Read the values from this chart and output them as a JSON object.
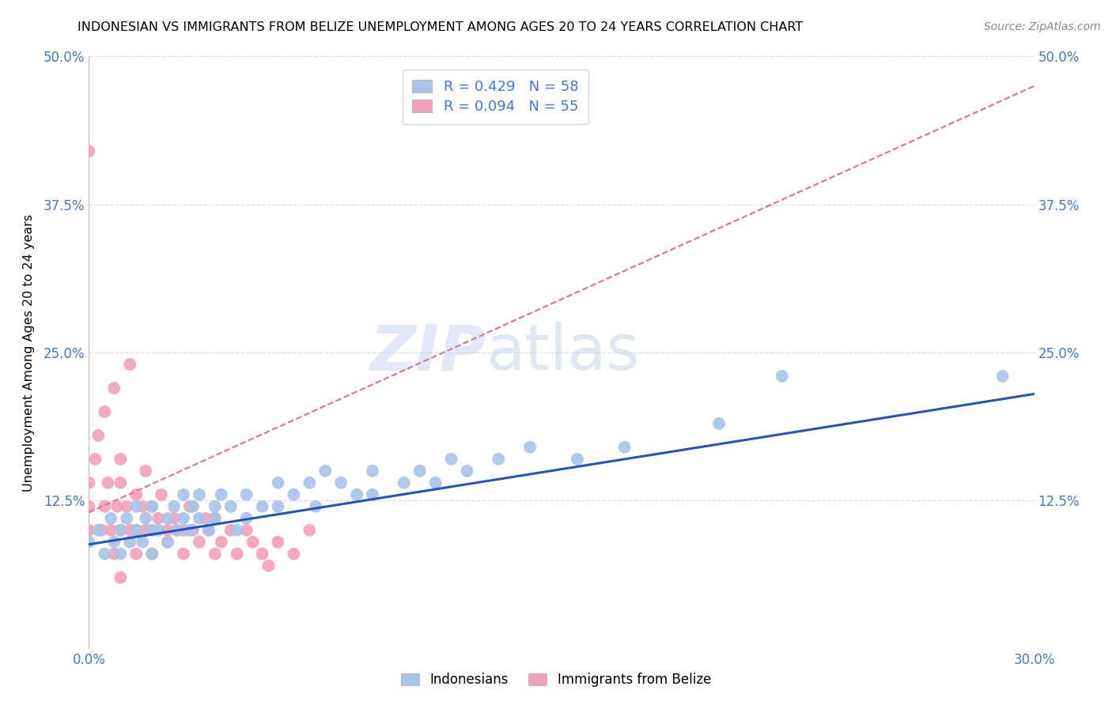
{
  "title": "INDONESIAN VS IMMIGRANTS FROM BELIZE UNEMPLOYMENT AMONG AGES 20 TO 24 YEARS CORRELATION CHART",
  "source": "Source: ZipAtlas.com",
  "ylabel": "Unemployment Among Ages 20 to 24 years",
  "xlim": [
    0,
    0.3
  ],
  "ylim": [
    0,
    0.5
  ],
  "yticks": [
    0.0,
    0.125,
    0.25,
    0.375,
    0.5
  ],
  "ytick_labels_left": [
    "",
    "12.5%",
    "25.0%",
    "37.5%",
    "50.0%"
  ],
  "ytick_labels_right": [
    "",
    "12.5%",
    "25.0%",
    "37.5%",
    "50.0%"
  ],
  "xtick_labels": [
    "0.0%",
    "",
    "",
    "",
    "",
    "",
    "30.0%"
  ],
  "blue_color": "#a8c4e8",
  "pink_color": "#f4a0b8",
  "blue_line_color": "#2255bb",
  "pink_line_color": "#e07090",
  "grid_color": "#dddddd",
  "R_blue": 0.429,
  "N_blue": 58,
  "R_pink": 0.094,
  "N_pink": 55,
  "watermark": "ZIPatlas",
  "legend_label_blue": "Indonesians",
  "legend_label_pink": "Immigrants from Belize",
  "tick_color": "#4477cc",
  "title_fontsize": 11.5,
  "source_fontsize": 10,
  "blue_x": [
    0.0,
    0.003,
    0.005,
    0.007,
    0.008,
    0.01,
    0.01,
    0.012,
    0.013,
    0.015,
    0.015,
    0.017,
    0.018,
    0.02,
    0.02,
    0.02,
    0.022,
    0.025,
    0.025,
    0.027,
    0.028,
    0.03,
    0.03,
    0.032,
    0.033,
    0.035,
    0.035,
    0.038,
    0.04,
    0.04,
    0.042,
    0.045,
    0.047,
    0.05,
    0.05,
    0.055,
    0.06,
    0.06,
    0.065,
    0.07,
    0.072,
    0.075,
    0.08,
    0.085,
    0.09,
    0.09,
    0.1,
    0.105,
    0.11,
    0.115,
    0.12,
    0.13,
    0.14,
    0.155,
    0.17,
    0.2,
    0.22,
    0.29
  ],
  "blue_y": [
    0.09,
    0.1,
    0.08,
    0.11,
    0.09,
    0.1,
    0.08,
    0.11,
    0.09,
    0.1,
    0.12,
    0.09,
    0.11,
    0.1,
    0.08,
    0.12,
    0.1,
    0.11,
    0.09,
    0.12,
    0.1,
    0.11,
    0.13,
    0.1,
    0.12,
    0.11,
    0.13,
    0.1,
    0.12,
    0.11,
    0.13,
    0.12,
    0.1,
    0.13,
    0.11,
    0.12,
    0.14,
    0.12,
    0.13,
    0.14,
    0.12,
    0.15,
    0.14,
    0.13,
    0.15,
    0.13,
    0.14,
    0.15,
    0.14,
    0.16,
    0.15,
    0.16,
    0.17,
    0.16,
    0.17,
    0.19,
    0.23,
    0.23
  ],
  "pink_x": [
    0.0,
    0.0,
    0.0,
    0.0,
    0.002,
    0.003,
    0.004,
    0.005,
    0.005,
    0.006,
    0.007,
    0.008,
    0.008,
    0.009,
    0.01,
    0.01,
    0.01,
    0.01,
    0.012,
    0.013,
    0.013,
    0.015,
    0.015,
    0.015,
    0.017,
    0.018,
    0.018,
    0.02,
    0.02,
    0.02,
    0.022,
    0.023,
    0.025,
    0.025,
    0.027,
    0.028,
    0.03,
    0.03,
    0.032,
    0.033,
    0.035,
    0.037,
    0.038,
    0.04,
    0.04,
    0.042,
    0.045,
    0.047,
    0.05,
    0.052,
    0.055,
    0.057,
    0.06,
    0.065,
    0.07
  ],
  "pink_y": [
    0.1,
    0.12,
    0.14,
    0.42,
    0.16,
    0.18,
    0.1,
    0.12,
    0.2,
    0.14,
    0.1,
    0.08,
    0.22,
    0.12,
    0.1,
    0.14,
    0.16,
    0.06,
    0.12,
    0.1,
    0.24,
    0.1,
    0.13,
    0.08,
    0.12,
    0.1,
    0.15,
    0.1,
    0.08,
    0.12,
    0.11,
    0.13,
    0.1,
    0.09,
    0.11,
    0.1,
    0.1,
    0.08,
    0.12,
    0.1,
    0.09,
    0.11,
    0.1,
    0.08,
    0.11,
    0.09,
    0.1,
    0.08,
    0.1,
    0.09,
    0.08,
    0.07,
    0.09,
    0.08,
    0.1
  ],
  "blue_line_x": [
    0.0,
    0.3
  ],
  "blue_line_y": [
    0.088,
    0.215
  ],
  "pink_line_x": [
    0.0,
    0.3
  ],
  "pink_line_y": [
    0.115,
    0.475
  ]
}
